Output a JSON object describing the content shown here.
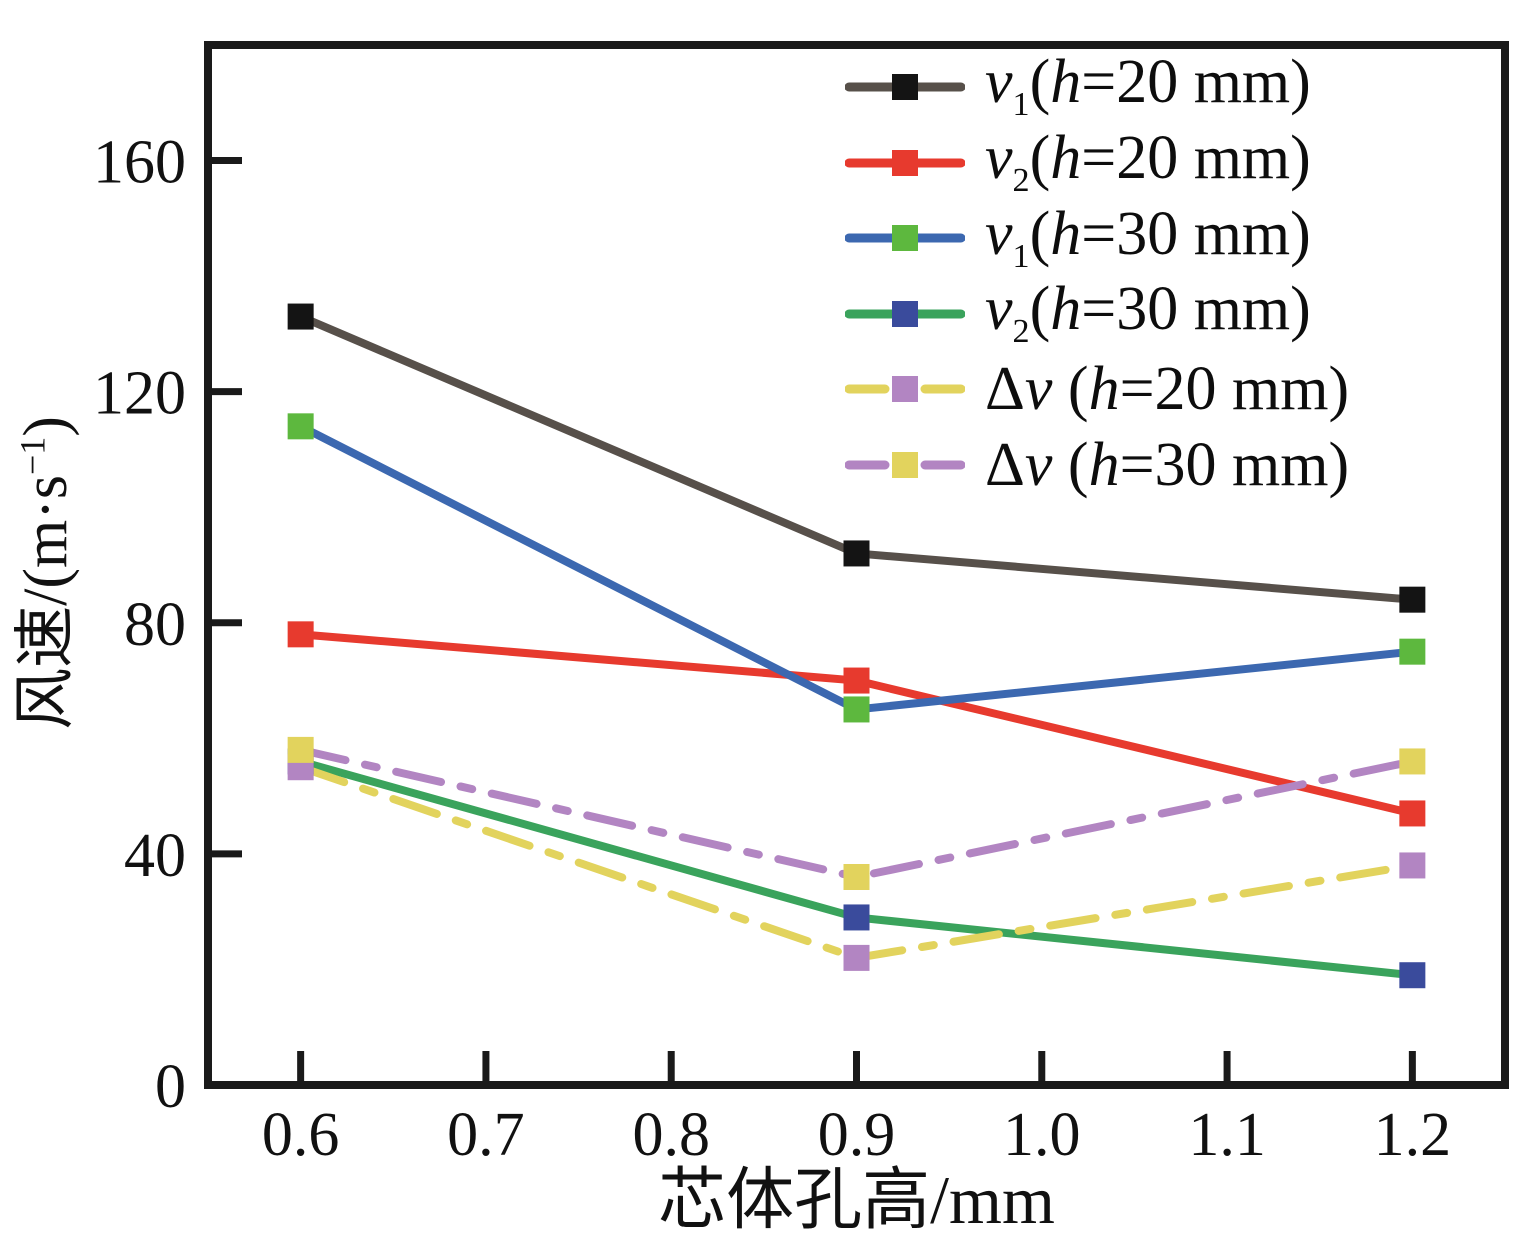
{
  "chart_data": {
    "type": "line",
    "title": "",
    "xlabel": "芯体孔高/mm",
    "ylabel": "风速/(m·s⁻¹)",
    "ylabel_parts": {
      "pre": "风速/(m·s",
      "sup": "−1",
      "post": ")"
    },
    "x": [
      0.6,
      0.9,
      1.2
    ],
    "x_ticks": [
      0.6,
      0.7,
      0.8,
      0.9,
      1.0,
      1.1,
      1.2
    ],
    "x_tick_labels": [
      "0.6",
      "0.7",
      "0.8",
      "0.9",
      "1.0",
      "1.1",
      "1.2"
    ],
    "y_ticks": [
      0,
      40,
      80,
      120,
      160
    ],
    "y_tick_labels": [
      "0",
      "40",
      "80",
      "120",
      "160"
    ],
    "xlim": [
      0.55,
      1.25
    ],
    "ylim": [
      0,
      180
    ],
    "grid": false,
    "legend_position": "top-right-inside",
    "axis_color": "#1a1a1a",
    "series": [
      {
        "id": "v1-h20",
        "label": "v1(h=20 mm)",
        "legend": {
          "delta": "",
          "var": "v",
          "sub": "1",
          "mid": "(",
          "hvar": "h",
          "tail": "=20 mm)"
        },
        "values": [
          133,
          92,
          84
        ],
        "line_color": "#57504a",
        "marker_color": "#141414",
        "dash": false
      },
      {
        "id": "v2-h20",
        "label": "v2(h=20 mm)",
        "legend": {
          "delta": "",
          "var": "v",
          "sub": "2",
          "mid": "(",
          "hvar": "h",
          "tail": "=20 mm)"
        },
        "values": [
          78,
          70,
          47
        ],
        "line_color": "#e73a2e",
        "marker_color": "#e73a2e",
        "dash": false
      },
      {
        "id": "v1-h30",
        "label": "v1(h=30 mm)",
        "legend": {
          "delta": "",
          "var": "v",
          "sub": "1",
          "mid": "(",
          "hvar": "h",
          "tail": "=30 mm)"
        },
        "values": [
          114,
          65,
          75
        ],
        "line_color": "#3c68b0",
        "marker_color": "#5db83e",
        "dash": false
      },
      {
        "id": "v2-h30",
        "label": "v2(h=30 mm)",
        "legend": {
          "delta": "",
          "var": "v",
          "sub": "2",
          "mid": "(",
          "hvar": "h",
          "tail": "=30 mm)"
        },
        "values": [
          56,
          29,
          19
        ],
        "line_color": "#3aa35c",
        "marker_color": "#3a4b9c",
        "dash": false
      },
      {
        "id": "dv-h20",
        "label": "Δv (h=20 mm)",
        "legend": {
          "delta": "Δ",
          "var": "v",
          "sub": "",
          "mid": " (",
          "hvar": "h",
          "tail": "=20 mm)"
        },
        "values": [
          55,
          22,
          38
        ],
        "line_color": "#e2d35d",
        "marker_color": "#b285c2",
        "dash": true
      },
      {
        "id": "dv-h30",
        "label": "Δv (h=30 mm)",
        "legend": {
          "delta": "Δ",
          "var": "v",
          "sub": "",
          "mid": " (",
          "hvar": "h",
          "tail": "=30 mm)"
        },
        "values": [
          58,
          36,
          56
        ],
        "line_color": "#b285c2",
        "marker_color": "#e2d35d",
        "dash": true
      }
    ]
  }
}
